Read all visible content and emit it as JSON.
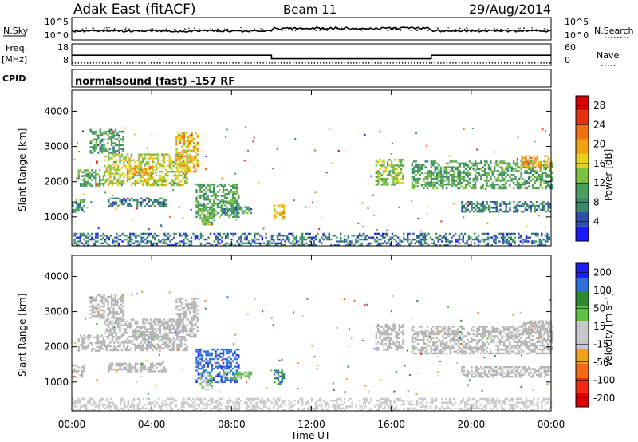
{
  "header": {
    "station": "Adak East (fitACF)",
    "beam": "Beam 11",
    "date": "29/Aug/2014"
  },
  "labels": {
    "nsky": "N.Sky",
    "nsearch": "N.Search",
    "freq": "Freq.",
    "freq_unit": "[MHz]",
    "cpid": "CPID",
    "nave": "Nave",
    "program": "normalsound (fast) -157 RF",
    "time_axis": "Time UT",
    "y_axis": "Slant Range [km]",
    "power_axis": "Power [dB]",
    "velocity_axis": "Velocity [m s⁻¹]"
  },
  "ticks": {
    "noise_left": [
      "10^5",
      "10^0"
    ],
    "noise_right": [
      "10^5",
      "10^0"
    ],
    "freq_left": [
      "18",
      "8"
    ],
    "nave_right": [
      "60",
      "0"
    ],
    "time": [
      "00:00",
      "04:00",
      "08:00",
      "12:00",
      "16:00",
      "20:00",
      "00:00"
    ],
    "range": [
      "1000",
      "2000",
      "3000",
      "4000"
    ],
    "power": [
      "4",
      "8",
      "12",
      "16",
      "20",
      "24",
      "28"
    ],
    "velocity": [
      "200",
      "100",
      "50",
      "15",
      "-15",
      "-50",
      "-100",
      "-200"
    ]
  },
  "colors": {
    "power_scale": [
      "#1a1aff",
      "#2d4fa8",
      "#3a8a6a",
      "#4aa05a",
      "#7ec040",
      "#e8d020",
      "#f0a010",
      "#f07010",
      "#e83010",
      "#d80000"
    ],
    "velocity_scale": [
      "#1e1ef0",
      "#2e6fd8",
      "#2e8a2e",
      "#60c040",
      "#c8c8c8",
      "#c8c8c8",
      "#f0a020",
      "#f06a10",
      "#f02a10",
      "#e00000"
    ],
    "ground_scatter": "#b4b4b4"
  },
  "chart_data": {
    "type": "heatmap",
    "x_unit": "hours UT",
    "xlim": [
      0,
      24
    ],
    "ylim": [
      180,
      4600
    ],
    "power_range": [
      0,
      30
    ],
    "velocity_range": [
      -250,
      250
    ],
    "frequency_mhz": [
      {
        "start": 0,
        "end": 10,
        "value": 13.5
      },
      {
        "start": 10,
        "end": 18,
        "value": 10.8
      },
      {
        "start": 18,
        "end": 24,
        "value": 13.5
      }
    ],
    "nave": [
      {
        "start": 0,
        "end": 10,
        "value": 8
      },
      {
        "start": 10,
        "end": 18,
        "value": 8
      },
      {
        "start": 18,
        "end": 24,
        "value": 8
      }
    ],
    "regions": [
      {
        "t0": 0.0,
        "t1": 0.6,
        "r0": 1150,
        "r1": 1500,
        "power": 9,
        "velocity": 0,
        "ground": true
      },
      {
        "t0": 0.3,
        "t1": 1.6,
        "r0": 1900,
        "r1": 2350,
        "power": 10,
        "velocity": 0,
        "ground": true
      },
      {
        "t0": 0.9,
        "t1": 2.6,
        "r0": 2800,
        "r1": 3500,
        "power": 9,
        "velocity": 0,
        "ground": true
      },
      {
        "t0": 1.6,
        "t1": 5.8,
        "r0": 1900,
        "r1": 2800,
        "power": 15,
        "velocity": 0,
        "ground": true
      },
      {
        "t0": 3.0,
        "t1": 4.2,
        "r0": 2200,
        "r1": 2450,
        "power": 20,
        "velocity": 0,
        "ground": true
      },
      {
        "t0": 5.2,
        "t1": 6.3,
        "r0": 2300,
        "r1": 3400,
        "power": 18,
        "velocity": 0,
        "ground": true
      },
      {
        "t0": 1.8,
        "t1": 4.7,
        "r0": 1300,
        "r1": 1550,
        "power": 7,
        "velocity": 0,
        "ground": true
      },
      {
        "t0": 6.2,
        "t1": 8.4,
        "r0": 1000,
        "r1": 1950,
        "power": 10,
        "velocity": 180,
        "ground": false
      },
      {
        "t0": 7.5,
        "t1": 9.0,
        "r0": 1100,
        "r1": 1300,
        "power": 9,
        "velocity": 60,
        "ground": false
      },
      {
        "t0": 6.4,
        "t1": 7.0,
        "r0": 800,
        "r1": 1250,
        "power": 12,
        "velocity": 35,
        "ground": false
      },
      {
        "t0": 10.1,
        "t1": 10.6,
        "r0": 950,
        "r1": 1350,
        "power": 18,
        "velocity": 150,
        "ground": false
      },
      {
        "t0": 15.2,
        "t1": 16.6,
        "r0": 1900,
        "r1": 2650,
        "power": 13,
        "velocity": 0,
        "ground": true
      },
      {
        "t0": 17.0,
        "t1": 24.0,
        "r0": 1800,
        "r1": 2600,
        "power": 10,
        "velocity": 0,
        "ground": true
      },
      {
        "t0": 19.5,
        "t1": 24.0,
        "r0": 1150,
        "r1": 1450,
        "power": 7,
        "velocity": 0,
        "ground": true
      },
      {
        "t0": 22.5,
        "t1": 24.0,
        "r0": 2400,
        "r1": 2750,
        "power": 20,
        "velocity": 0,
        "ground": true
      },
      {
        "t0": 0.0,
        "t1": 24.0,
        "r0": 200,
        "r1": 550,
        "power": 6,
        "velocity": -20,
        "ground": false
      }
    ]
  }
}
